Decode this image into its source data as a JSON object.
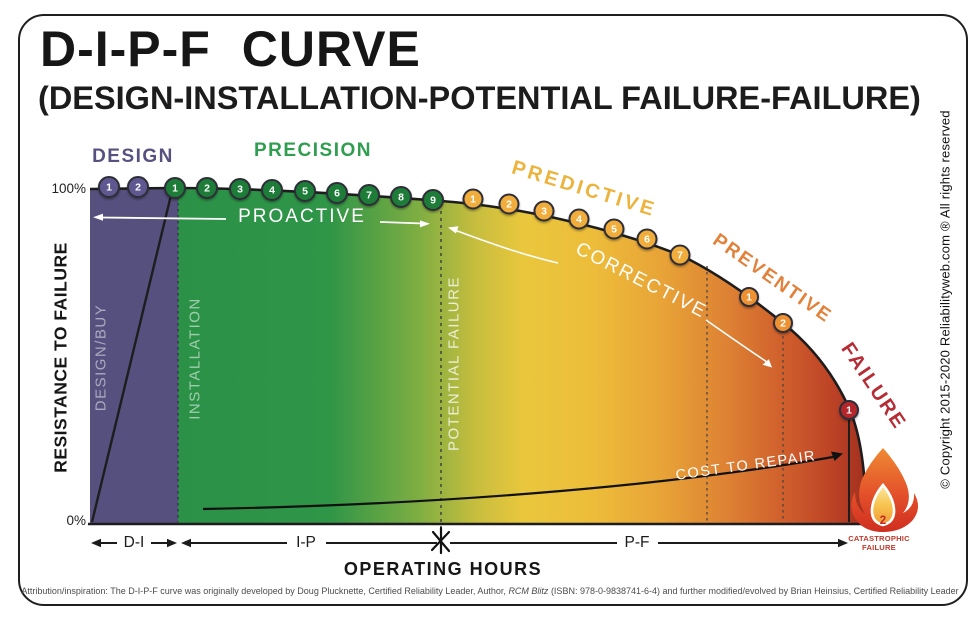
{
  "header": {
    "title": "D-I-P-F CURVE",
    "subtitle": "(DESIGN-INSTALLATION-POTENTIAL FAILURE-FAILURE)"
  },
  "y_axis": {
    "label": "RESISTANCE TO FAILURE",
    "max": "100%",
    "min": "0%"
  },
  "x_axis": {
    "label": "OPERATING HOURS",
    "span_di": "D-I",
    "span_ip": "I-P",
    "span_pf": "P-F"
  },
  "stages": [
    {
      "id": "design",
      "label": "DESIGN",
      "color": "#575180",
      "marker_color": "#5e5890",
      "markers": [
        "1",
        "2"
      ]
    },
    {
      "id": "precision",
      "label": "PRECISION",
      "color": "#2f9e50",
      "marker_color": "#1e7c38",
      "markers": [
        "1",
        "2",
        "3",
        "4",
        "5",
        "6",
        "7",
        "8",
        "9"
      ]
    },
    {
      "id": "predictive",
      "label": "PREDICTIVE",
      "color": "#ecb43d",
      "marker_color": "#f0ad3a",
      "markers": [
        "1",
        "2",
        "3",
        "4",
        "5",
        "6",
        "7"
      ]
    },
    {
      "id": "preventive",
      "label": "PREVENTIVE",
      "color": "#e2813a",
      "marker_color": "#ed9133",
      "markers": [
        "1",
        "2"
      ]
    },
    {
      "id": "failure",
      "label": "FAILURE",
      "color": "#b52c35",
      "marker_color": "#b3252c",
      "markers": [
        "1"
      ]
    }
  ],
  "phase_labels": {
    "design_buy": "DESIGN/BUY",
    "installation": "INSTALLATION",
    "potential_failure": "POTENTIAL FAILURE"
  },
  "annotations": {
    "proactive": "PROACTIVE",
    "corrective": "CORRECTIVE",
    "cost_to_repair": "COST TO REPAIR"
  },
  "catastrophic": {
    "number": "2",
    "label": "CATASTROPHIC FAILURE"
  },
  "footer": {
    "attribution_pre": "Attribution/inspiration: The D-I-P-F curve was originally developed by Doug Plucknette, Certified Reliability Leader, Author, ",
    "attribution_italic": "RCM Blitz",
    "attribution_post": " (ISBN: 978-0-9838741-6-4) and further modified/evolved by Brian Heinsius, Certified Reliability Leader"
  },
  "copyright": "© Copyright 2015-2020 Reliabilityweb.com ® All rights reserved"
}
